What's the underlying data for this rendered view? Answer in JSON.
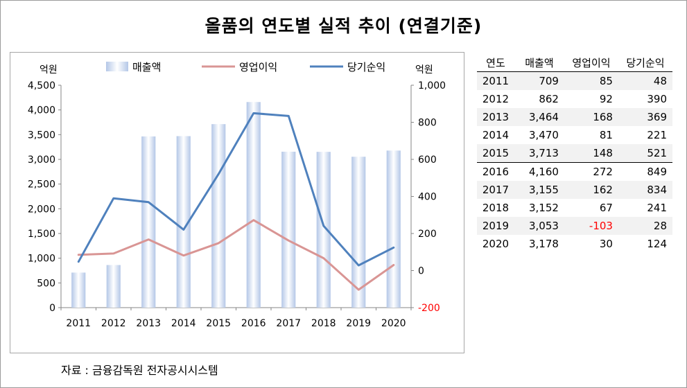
{
  "title": "올품의 연도별 실적 추이 (연결기준)",
  "source": "자료 : 금융감독원 전자공시시스템",
  "colors": {
    "sales_bar_edge": "#b4c7e7",
    "sales_bar_center": "#ffffff",
    "operating_profit_line": "#d99594",
    "net_income_line": "#4f81bd",
    "negative_value": "#ff0000"
  },
  "chart_data": {
    "type": "bar",
    "title": "",
    "x": [
      "2011",
      "2012",
      "2013",
      "2014",
      "2015",
      "2016",
      "2017",
      "2018",
      "2019",
      "2020"
    ],
    "left_axis": {
      "unit_label": "억원",
      "ylim": [
        0,
        4500
      ],
      "ticks": [
        "0",
        "500",
        "1,000",
        "1,500",
        "2,000",
        "2,500",
        "3,000",
        "3,500",
        "4,000",
        "4,500"
      ]
    },
    "right_axis": {
      "unit_label": "억원",
      "ylim": [
        -200,
        1000
      ],
      "ticks": [
        "-200",
        "0",
        "200",
        "400",
        "600",
        "800",
        "1,000"
      ]
    },
    "series": [
      {
        "name": "매출액",
        "type": "bar",
        "axis": "left",
        "values": [
          709,
          862,
          3464,
          3470,
          3713,
          4160,
          3155,
          3152,
          3053,
          3178
        ]
      },
      {
        "name": "영업이익",
        "type": "line",
        "axis": "right",
        "values": [
          85,
          92,
          168,
          81,
          148,
          272,
          162,
          67,
          -103,
          30
        ]
      },
      {
        "name": "당기순익",
        "type": "line",
        "axis": "right",
        "values": [
          48,
          390,
          369,
          221,
          521,
          849,
          834,
          241,
          28,
          124
        ]
      }
    ],
    "legend_position": "top",
    "grid": false
  },
  "table": {
    "headers": [
      "연도",
      "매출액",
      "영업이익",
      "당기순익"
    ],
    "rows": [
      [
        "2011",
        "709",
        "85",
        "48"
      ],
      [
        "2012",
        "862",
        "92",
        "390"
      ],
      [
        "2013",
        "3,464",
        "168",
        "369"
      ],
      [
        "2014",
        "3,470",
        "81",
        "221"
      ],
      [
        "2015",
        "3,713",
        "148",
        "521"
      ],
      [
        "2016",
        "4,160",
        "272",
        "849"
      ],
      [
        "2017",
        "3,155",
        "162",
        "834"
      ],
      [
        "2018",
        "3,152",
        "67",
        "241"
      ],
      [
        "2019",
        "3,053",
        "-103",
        "28"
      ],
      [
        "2020",
        "3,178",
        "30",
        "124"
      ]
    ]
  }
}
